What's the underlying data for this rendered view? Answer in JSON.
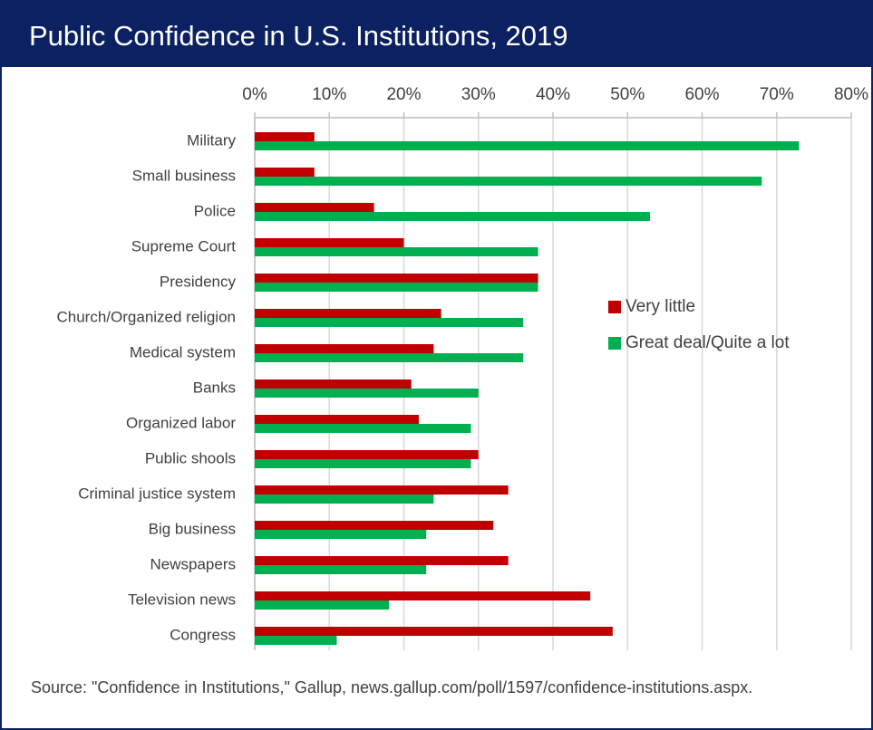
{
  "chart_data": {
    "type": "hbar",
    "title": "Public Confidence in U.S. Institutions, 2019",
    "categories": [
      "Military",
      "Small business",
      "Police",
      "Supreme Court",
      "Presidency",
      "Church/Organized religion",
      "Medical system",
      "Banks",
      "Organized labor",
      "Public shools",
      "Criminal justice system",
      "Big business",
      "Newspapers",
      "Television news",
      "Congress"
    ],
    "series": [
      {
        "name": "Very little",
        "color": "#c00000",
        "values": [
          8,
          8,
          16,
          20,
          38,
          25,
          24,
          21,
          22,
          30,
          34,
          32,
          34,
          45,
          48
        ]
      },
      {
        "name": "Great deal/Quite a lot",
        "color": "#00b050",
        "values": [
          73,
          68,
          53,
          38,
          38,
          36,
          36,
          30,
          29,
          29,
          24,
          23,
          23,
          18,
          11
        ]
      }
    ],
    "xlim": [
      0,
      80
    ],
    "xticks": [
      {
        "value": 0,
        "label": "0%"
      },
      {
        "value": 10,
        "label": "10%"
      },
      {
        "value": 20,
        "label": "20%"
      },
      {
        "value": 30,
        "label": "30%"
      },
      {
        "value": 40,
        "label": "40%"
      },
      {
        "value": 50,
        "label": "50%"
      },
      {
        "value": 60,
        "label": "60%"
      },
      {
        "value": 70,
        "label": "70%"
      },
      {
        "value": 80,
        "label": "80%"
      }
    ],
    "grid": true,
    "source": "Source: \"Confidence in Institutions,\" Gallup, news.gallup.com/poll/1597/confidence-institutions.aspx."
  }
}
